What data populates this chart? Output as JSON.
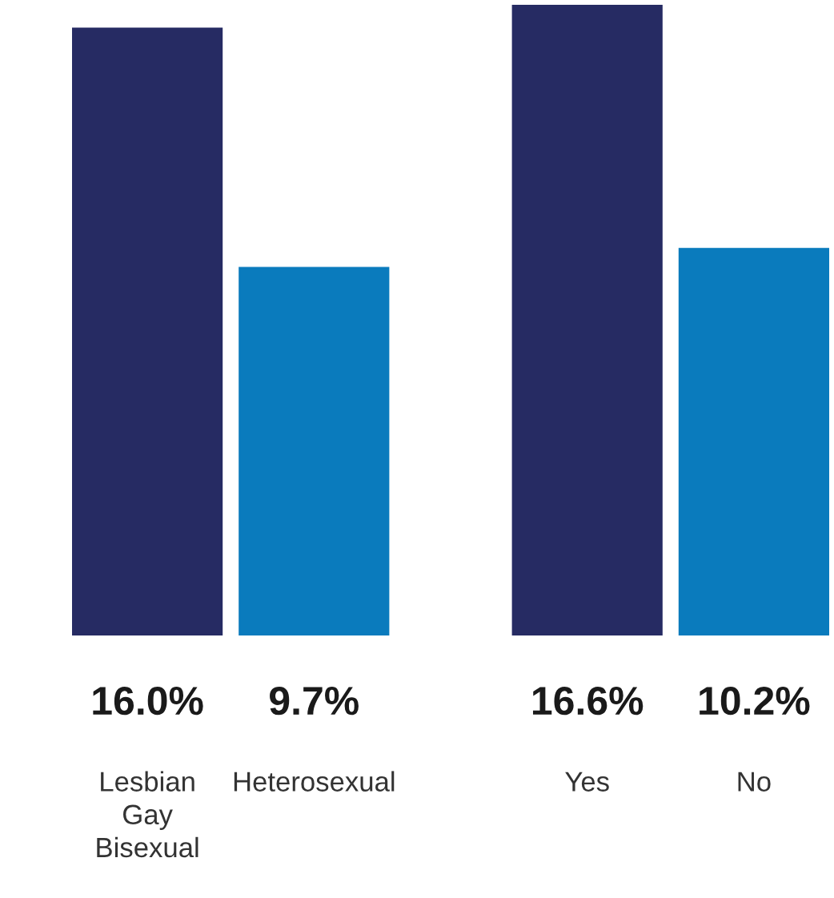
{
  "chart_data": {
    "type": "bar",
    "categories": [
      "Lesbian\nGay\nBisexual",
      "Heterosexual",
      "Yes",
      "No"
    ],
    "values": [
      16.0,
      9.7,
      16.6,
      10.2
    ],
    "colors": [
      "#262b63",
      "#0a7bbd",
      "#262b63",
      "#0a7bbd"
    ],
    "value_labels": [
      "16.0%",
      "9.7%",
      "16.6%",
      "10.2%"
    ]
  }
}
